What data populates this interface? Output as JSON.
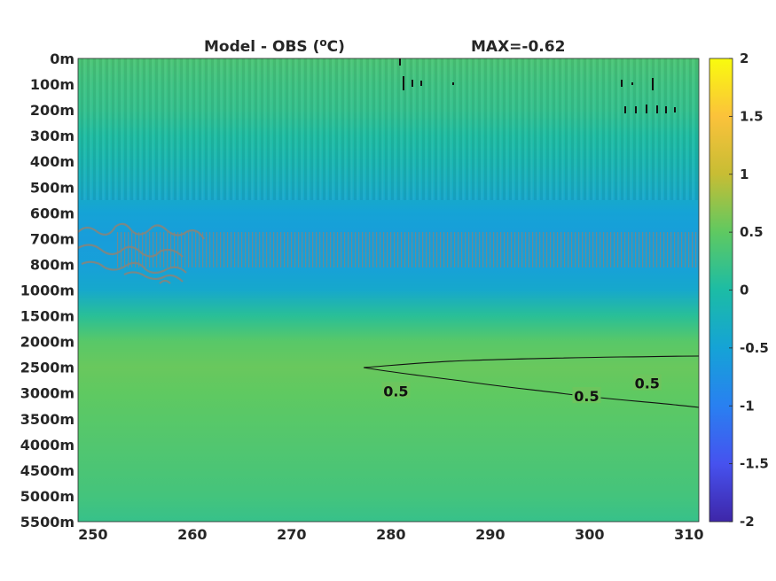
{
  "chart_data": {
    "type": "heatmap",
    "title": "Model - OBS (",
    "title_sup": "o",
    "title_end": "C)",
    "max_label": "MAX=-0.62",
    "x_ticks": [
      "250",
      "260",
      "270",
      "280",
      "290",
      "300",
      "310"
    ],
    "x_range": [
      248.5,
      311
    ],
    "y_ticks": [
      "0m",
      "100m",
      "200m",
      "300m",
      "400m",
      "500m",
      "600m",
      "700m",
      "800m",
      "1000m",
      "1500m",
      "2000m",
      "2500m",
      "3000m",
      "3500m",
      "4000m",
      "4500m",
      "5000m",
      "5500m"
    ],
    "colorbar": {
      "ticks": [
        "2",
        "1.5",
        "1",
        "0.5",
        "0",
        "-0.5",
        "-1",
        "-1.5",
        "-2"
      ],
      "range": [
        -2,
        2
      ],
      "colormap": "parula"
    },
    "depth_profile": [
      {
        "level": 0,
        "value": 0.35
      },
      {
        "level": 1,
        "value": 0.25
      },
      {
        "level": 2,
        "value": 0.18
      },
      {
        "level": 3,
        "value": 0.02
      },
      {
        "level": 4,
        "value": -0.12
      },
      {
        "level": 5,
        "value": -0.3
      },
      {
        "level": 6,
        "value": -0.5
      },
      {
        "level": 7,
        "value": -0.58
      },
      {
        "level": 8,
        "value": -0.55
      },
      {
        "level": 9,
        "value": -0.4
      },
      {
        "level": 10,
        "value": 0.1
      },
      {
        "level": 11,
        "value": 0.45
      },
      {
        "level": 12,
        "value": 0.55
      },
      {
        "level": 13,
        "value": 0.5
      },
      {
        "level": 14,
        "value": 0.45
      },
      {
        "level": 15,
        "value": 0.4
      },
      {
        "level": 16,
        "value": 0.35
      },
      {
        "level": 17,
        "value": 0.3
      },
      {
        "level": 18,
        "value": 0.2
      }
    ],
    "contours": [
      {
        "value": "0.5",
        "labels": [
          {
            "lon": 280.5,
            "level": 12.95
          },
          {
            "lon": 305.8,
            "level": 12.65
          }
        ]
      },
      {
        "value": "0.5",
        "labels": [
          {
            "lon": 299.7,
            "level": 13.15
          }
        ]
      }
    ]
  }
}
